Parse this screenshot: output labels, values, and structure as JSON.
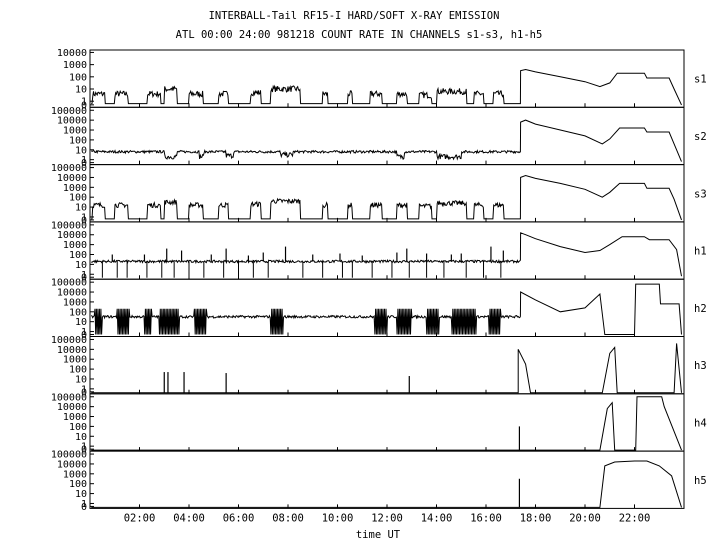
{
  "title": "INTERBALL-Tail RF15-I HARD/SOFT X-RAY EMISSION",
  "subtitle": "ATL 00:00 24:00 981218  COUNT RATE IN CHANNELS s1-s3, h1-h5",
  "chart_data": {
    "type": "line",
    "title": "INTERBALL-Tail RF15-I HARD/SOFT X-RAY EMISSION",
    "subtitle": "ATL 00:00 24:00 981218  COUNT RATE IN CHANNELS s1-s3, h1-h5",
    "xlabel": "time UT",
    "xlim": [
      0,
      24
    ],
    "x_tick_labels": [
      "02:00",
      "04:00",
      "06:00",
      "08:00",
      "10:00",
      "12:00",
      "14:00",
      "16:00",
      "18:00",
      "20:00",
      "22:00"
    ],
    "x_tick_values": [
      2,
      4,
      6,
      8,
      10,
      12,
      14,
      16,
      18,
      20,
      22
    ],
    "yscale": "log",
    "panels": [
      {
        "name": "s1",
        "ylim_exp": [
          -0.5,
          4.2
        ],
        "y_tick_labels": [
          "0",
          "1",
          "10",
          "100",
          "1000",
          "10000"
        ],
        "y_tick_exps": [
          -0.3,
          0,
          1,
          2,
          3,
          4
        ],
        "baseline_exp": -0.2,
        "bursts": [
          [
            0.1,
            0.6,
            0.6
          ],
          [
            1.0,
            1.55,
            0.6
          ],
          [
            2.3,
            2.85,
            0.6
          ],
          [
            3.0,
            3.5,
            1.0
          ],
          [
            4.0,
            4.55,
            0.6
          ],
          [
            5.2,
            5.6,
            0.6
          ],
          [
            6.5,
            6.9,
            0.7
          ],
          [
            7.3,
            8.5,
            1.0
          ],
          [
            9.4,
            9.6,
            0.6
          ],
          [
            10.4,
            10.6,
            0.6
          ],
          [
            11.3,
            11.8,
            0.6
          ],
          [
            12.4,
            12.8,
            0.6
          ],
          [
            13.3,
            13.8,
            0.5
          ],
          [
            14.0,
            15.2,
            0.8
          ],
          [
            15.5,
            15.9,
            0.6
          ],
          [
            16.3,
            16.7,
            0.6
          ]
        ],
        "event": [
          [
            17.4,
            2.5
          ],
          [
            17.6,
            2.6
          ],
          [
            18.0,
            2.4
          ],
          [
            19.0,
            2.0
          ],
          [
            20.0,
            1.6
          ],
          [
            20.6,
            1.2
          ],
          [
            21.0,
            1.5
          ],
          [
            21.3,
            2.3
          ],
          [
            22.4,
            2.3
          ],
          [
            22.5,
            1.9
          ],
          [
            23.4,
            1.9
          ],
          [
            23.6,
            1.0
          ],
          [
            23.9,
            -0.3
          ]
        ]
      },
      {
        "name": "s2",
        "ylim_exp": [
          -0.5,
          5.3
        ],
        "y_tick_labels": [
          "0",
          "1",
          "10",
          "100",
          "1000",
          "10000",
          "100000"
        ],
        "y_tick_exps": [
          -0.3,
          0,
          1,
          2,
          3,
          4,
          5
        ],
        "baseline_exp": 0.8,
        "bursts": [
          [
            3.0,
            3.5,
            0.3
          ],
          [
            4.4,
            4.6,
            0.3
          ],
          [
            5.5,
            5.8,
            0.4
          ],
          [
            7.7,
            8.2,
            0.5
          ],
          [
            12.4,
            12.7,
            0.3
          ],
          [
            14.0,
            15.0,
            0.3
          ]
        ],
        "event": [
          [
            17.4,
            3.8
          ],
          [
            17.6,
            4.0
          ],
          [
            18.0,
            3.6
          ],
          [
            19.0,
            3.0
          ],
          [
            20.0,
            2.4
          ],
          [
            20.7,
            1.6
          ],
          [
            21.0,
            2.1
          ],
          [
            21.4,
            3.2
          ],
          [
            22.4,
            3.2
          ],
          [
            22.5,
            2.8
          ],
          [
            23.4,
            2.8
          ],
          [
            23.6,
            1.6
          ],
          [
            23.9,
            -0.2
          ]
        ]
      },
      {
        "name": "s3",
        "ylim_exp": [
          -0.5,
          5.3
        ],
        "y_tick_labels": [
          "0",
          "1",
          "10",
          "100",
          "1000",
          "10000",
          "100000"
        ],
        "y_tick_exps": [
          -0.3,
          0,
          1,
          2,
          3,
          4,
          5
        ],
        "baseline_exp": -0.2,
        "bursts": [
          [
            0.1,
            0.6,
            1.2
          ],
          [
            1.0,
            1.55,
            1.2
          ],
          [
            2.3,
            2.85,
            1.2
          ],
          [
            3.0,
            3.5,
            1.5
          ],
          [
            4.0,
            4.55,
            1.2
          ],
          [
            5.2,
            5.6,
            1.2
          ],
          [
            6.5,
            6.9,
            1.3
          ],
          [
            7.3,
            8.5,
            1.6
          ],
          [
            9.4,
            9.6,
            1.2
          ],
          [
            10.4,
            10.6,
            1.2
          ],
          [
            11.3,
            11.8,
            1.2
          ],
          [
            12.4,
            12.8,
            1.2
          ],
          [
            13.3,
            13.8,
            1.1
          ],
          [
            14.0,
            15.2,
            1.4
          ],
          [
            15.5,
            15.9,
            1.2
          ],
          [
            16.3,
            16.7,
            1.2
          ]
        ],
        "event": [
          [
            17.4,
            4.0
          ],
          [
            17.6,
            4.2
          ],
          [
            18.0,
            3.9
          ],
          [
            19.0,
            3.4
          ],
          [
            20.0,
            2.8
          ],
          [
            20.7,
            2.0
          ],
          [
            21.0,
            2.5
          ],
          [
            21.4,
            3.4
          ],
          [
            22.4,
            3.4
          ],
          [
            22.5,
            2.9
          ],
          [
            23.4,
            2.9
          ],
          [
            23.6,
            1.8
          ],
          [
            23.9,
            -0.3
          ]
        ]
      },
      {
        "name": "h1",
        "ylim_exp": [
          -0.5,
          5.3
        ],
        "y_tick_labels": [
          "0",
          "1",
          "10",
          "100",
          "1000",
          "10000",
          "100000"
        ],
        "y_tick_exps": [
          -0.3,
          0,
          1,
          2,
          3,
          4,
          5
        ],
        "baseline_exp": 1.3,
        "dips": [
          0.5,
          1.1,
          1.5,
          2.3,
          2.9,
          3.4,
          4.0,
          4.6,
          5.4,
          6.0,
          6.6,
          7.2,
          8.6,
          9.4,
          10.2,
          10.6,
          11.4,
          12.2,
          12.9,
          13.6,
          14.3,
          15.2,
          15.9,
          16.6
        ],
        "spikes": [
          [
            0.9,
            2.0
          ],
          [
            2.2,
            2.0
          ],
          [
            3.1,
            2.6
          ],
          [
            3.7,
            2.4
          ],
          [
            4.9,
            2.0
          ],
          [
            5.5,
            2.6
          ],
          [
            6.4,
            1.9
          ],
          [
            7.0,
            2.2
          ],
          [
            7.9,
            2.8
          ],
          [
            9.0,
            2.0
          ],
          [
            10.1,
            2.1
          ],
          [
            11.0,
            1.9
          ],
          [
            12.4,
            2.2
          ],
          [
            12.8,
            2.6
          ],
          [
            13.6,
            2.1
          ],
          [
            14.6,
            2.0
          ],
          [
            15.0,
            2.1
          ],
          [
            16.2,
            2.8
          ],
          [
            16.7,
            2.4
          ]
        ],
        "event": [
          [
            17.4,
            4.2
          ],
          [
            17.6,
            4.0
          ],
          [
            18.0,
            3.6
          ],
          [
            19.0,
            2.8
          ],
          [
            20.0,
            2.2
          ],
          [
            20.6,
            2.4
          ],
          [
            21.0,
            3.0
          ],
          [
            21.5,
            3.8
          ],
          [
            22.4,
            3.8
          ],
          [
            22.6,
            3.5
          ],
          [
            23.4,
            3.5
          ],
          [
            23.7,
            2.5
          ],
          [
            23.9,
            -0.2
          ]
        ]
      },
      {
        "name": "h2",
        "ylim_exp": [
          -0.5,
          5.3
        ],
        "y_tick_labels": [
          "0",
          "1",
          "10",
          "100",
          "1000",
          "10000",
          "100000"
        ],
        "y_tick_exps": [
          -0.3,
          0,
          1,
          2,
          3,
          4,
          5
        ],
        "baseline_exp": 1.5,
        "blocks": [
          [
            0.2,
            0.5
          ],
          [
            1.1,
            1.6
          ],
          [
            2.2,
            2.5
          ],
          [
            2.8,
            3.6
          ],
          [
            4.2,
            4.7
          ],
          [
            7.3,
            7.8
          ],
          [
            11.5,
            12.0
          ],
          [
            12.4,
            13.0
          ],
          [
            13.6,
            14.1
          ],
          [
            14.6,
            15.6
          ],
          [
            16.1,
            16.6
          ]
        ],
        "event": [
          [
            17.4,
            4.0
          ],
          [
            18.0,
            3.2
          ],
          [
            19.0,
            2.0
          ],
          [
            20.0,
            2.4
          ],
          [
            20.6,
            3.8
          ],
          [
            20.8,
            -0.3
          ],
          [
            22.0,
            -0.3
          ],
          [
            22.05,
            4.8
          ],
          [
            23.0,
            4.8
          ],
          [
            23.05,
            2.8
          ],
          [
            23.8,
            2.8
          ],
          [
            23.9,
            -0.3
          ]
        ]
      },
      {
        "name": "h3",
        "ylim_exp": [
          -0.5,
          5.3
        ],
        "y_tick_labels": [
          "0",
          "1",
          "10",
          "100",
          "1000",
          "10000",
          "100000"
        ],
        "y_tick_exps": [
          -0.3,
          0,
          1,
          2,
          3,
          4,
          5
        ],
        "baseline_exp": -0.4,
        "spikes": [
          [
            3.0,
            1.7
          ],
          [
            3.15,
            1.7
          ],
          [
            3.8,
            1.7
          ],
          [
            5.5,
            1.6
          ],
          [
            12.9,
            1.3
          ]
        ],
        "event": [
          [
            17.3,
            4.0
          ],
          [
            17.6,
            2.5
          ],
          [
            17.8,
            -0.4
          ],
          [
            20.7,
            -0.4
          ],
          [
            21.0,
            3.6
          ],
          [
            21.2,
            4.2
          ],
          [
            21.3,
            -0.4
          ],
          [
            23.6,
            -0.4
          ],
          [
            23.7,
            4.6
          ],
          [
            23.9,
            -0.4
          ]
        ]
      },
      {
        "name": "h4",
        "ylim_exp": [
          -0.5,
          5.3
        ],
        "y_tick_labels": [
          "0",
          "1",
          "10",
          "100",
          "1000",
          "10000",
          "100000"
        ],
        "y_tick_exps": [
          -0.3,
          0,
          1,
          2,
          3,
          4,
          5
        ],
        "baseline_exp": -0.4,
        "spikes": [
          [
            17.35,
            2.0
          ]
        ],
        "event": [
          [
            20.6,
            -0.4
          ],
          [
            20.9,
            3.8
          ],
          [
            21.1,
            4.4
          ],
          [
            21.2,
            -0.4
          ],
          [
            22.05,
            -0.4
          ],
          [
            22.1,
            5.0
          ],
          [
            23.1,
            5.0
          ],
          [
            23.2,
            4.0
          ],
          [
            23.9,
            -0.4
          ]
        ]
      },
      {
        "name": "h5",
        "ylim_exp": [
          -0.5,
          5.3
        ],
        "y_tick_labels": [
          "0",
          "1",
          "10",
          "100",
          "1000",
          "10000",
          "100000"
        ],
        "y_tick_exps": [
          -0.3,
          0,
          1,
          2,
          3,
          4,
          5
        ],
        "baseline_exp": -0.4,
        "spikes": [
          [
            17.35,
            2.5
          ]
        ],
        "event": [
          [
            20.6,
            -0.4
          ],
          [
            20.8,
            3.8
          ],
          [
            21.2,
            4.2
          ],
          [
            22.0,
            4.3
          ],
          [
            22.5,
            4.3
          ],
          [
            23.0,
            3.8
          ],
          [
            23.5,
            2.8
          ],
          [
            23.9,
            -0.4
          ]
        ]
      }
    ]
  }
}
